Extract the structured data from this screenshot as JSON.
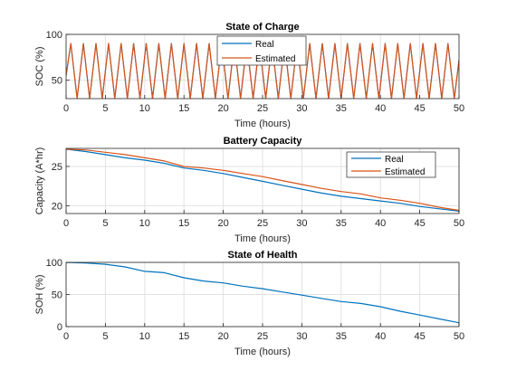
{
  "chart_data": [
    {
      "type": "line",
      "title": "State of Charge",
      "xlabel": "Time (hours)",
      "ylabel": "SOC (%)",
      "xlim": [
        0,
        50
      ],
      "ylim": [
        30,
        100
      ],
      "xticks": [
        0,
        5,
        10,
        15,
        20,
        25,
        30,
        35,
        40,
        45,
        50
      ],
      "yticks": [
        50,
        100
      ],
      "grid": true,
      "legend_position": "top-center",
      "series": [
        {
          "name": "Real",
          "color": "#0072BD",
          "x": [
            0,
            0.6,
            1.4,
            2.2,
            3.0,
            3.8,
            4.6,
            5.4,
            6.2,
            7.0,
            7.8,
            8.6,
            9.4,
            10.2,
            11.0,
            11.8,
            12.6,
            13.4,
            14.2,
            15.0,
            15.8,
            16.6,
            17.4,
            18.2,
            19.0,
            19.8,
            20.6,
            21.4,
            22.2,
            23.0,
            23.8,
            24.6,
            25.4,
            26.2,
            27.0,
            27.8,
            28.6,
            29.4,
            30.2,
            31.0,
            31.8,
            32.6,
            33.4,
            34.2,
            35.0,
            35.8,
            36.6,
            37.4,
            38.2,
            39.0,
            39.8,
            40.6,
            41.4,
            42.2,
            43.0,
            43.8,
            44.6,
            45.4,
            46.2,
            47.0,
            47.8,
            48.6,
            49.4,
            50.0
          ],
          "y": [
            55,
            90,
            30,
            90,
            30,
            90,
            30,
            90,
            30,
            90,
            30,
            90,
            30,
            90,
            30,
            90,
            30,
            90,
            30,
            90,
            30,
            90,
            30,
            90,
            30,
            90,
            30,
            90,
            30,
            90,
            30,
            90,
            30,
            90,
            30,
            90,
            30,
            90,
            30,
            90,
            30,
            90,
            30,
            90,
            30,
            90,
            30,
            90,
            30,
            90,
            30,
            90,
            30,
            90,
            30,
            90,
            30,
            90,
            30,
            90,
            30,
            90,
            30,
            72
          ]
        },
        {
          "name": "Estimated",
          "color": "#D95319",
          "x": [
            0,
            0.6,
            1.4,
            2.2,
            3.0,
            3.8,
            4.6,
            5.4,
            6.2,
            7.0,
            7.8,
            8.6,
            9.4,
            10.2,
            11.0,
            11.8,
            12.6,
            13.4,
            14.2,
            15.0,
            15.8,
            16.6,
            17.4,
            18.2,
            19.0,
            19.8,
            20.6,
            21.4,
            22.2,
            23.0,
            23.8,
            24.6,
            25.4,
            26.2,
            27.0,
            27.8,
            28.6,
            29.4,
            30.2,
            31.0,
            31.8,
            32.6,
            33.4,
            34.2,
            35.0,
            35.8,
            36.6,
            37.4,
            38.2,
            39.0,
            39.8,
            40.6,
            41.4,
            42.2,
            43.0,
            43.8,
            44.6,
            45.4,
            46.2,
            47.0,
            47.8,
            48.6,
            49.4,
            50.0
          ],
          "y": [
            55,
            90,
            30,
            90,
            30,
            90,
            30,
            90,
            30,
            90,
            30,
            90,
            30,
            90,
            30,
            90,
            30,
            90,
            30,
            90,
            30,
            90,
            30,
            90,
            30,
            90,
            30,
            90,
            30,
            90,
            30,
            90,
            30,
            90,
            30,
            90,
            30,
            90,
            30,
            90,
            30,
            90,
            30,
            90,
            30,
            90,
            30,
            90,
            30,
            90,
            30,
            90,
            30,
            90,
            30,
            90,
            30,
            90,
            30,
            90,
            30,
            90,
            30,
            72
          ]
        }
      ]
    },
    {
      "type": "line",
      "title": "Battery Capacity",
      "xlabel": "Time (hours)",
      "ylabel": "Capacity (A*hr)",
      "xlim": [
        0,
        50
      ],
      "ylim": [
        19,
        27.3
      ],
      "xticks": [
        0,
        5,
        10,
        15,
        20,
        25,
        30,
        35,
        40,
        45,
        50
      ],
      "yticks": [
        20,
        25
      ],
      "grid": true,
      "legend_position": "top-right",
      "series": [
        {
          "name": "Real",
          "color": "#0072BD",
          "x": [
            0,
            2.5,
            5,
            7.5,
            10,
            12.5,
            15,
            17.5,
            20,
            22.5,
            25,
            27.5,
            30,
            32.5,
            35,
            37.5,
            40,
            42.5,
            45,
            47.5,
            50
          ],
          "y": [
            27.2,
            26.9,
            26.5,
            26.1,
            25.8,
            25.4,
            24.8,
            24.5,
            24.1,
            23.6,
            23.1,
            22.6,
            22.1,
            21.6,
            21.2,
            20.9,
            20.6,
            20.3,
            19.9,
            19.6,
            19.3
          ]
        },
        {
          "name": "Estimated",
          "color": "#D95319",
          "x": [
            0,
            2.5,
            5,
            7.5,
            10,
            12.5,
            15,
            17.5,
            20,
            22.5,
            25,
            27.5,
            30,
            32.5,
            35,
            37.5,
            40,
            42.5,
            45,
            47.5,
            50
          ],
          "y": [
            27.2,
            27.1,
            26.8,
            26.5,
            26.1,
            25.7,
            25.0,
            24.8,
            24.5,
            24.1,
            23.7,
            23.2,
            22.7,
            22.2,
            21.8,
            21.5,
            21.0,
            20.7,
            20.3,
            19.8,
            19.4
          ]
        }
      ]
    },
    {
      "type": "line",
      "title": "State of Health",
      "xlabel": "Time (hours)",
      "ylabel": "SOH (%)",
      "xlim": [
        0,
        50
      ],
      "ylim": [
        0,
        100
      ],
      "xticks": [
        0,
        5,
        10,
        15,
        20,
        25,
        30,
        35,
        40,
        45,
        50
      ],
      "yticks": [
        0,
        50,
        100
      ],
      "grid": true,
      "series": [
        {
          "color": "#0072BD",
          "x": [
            0,
            2.5,
            5,
            7.5,
            10,
            12.5,
            15,
            17.5,
            20,
            22.5,
            25,
            27.5,
            30,
            32.5,
            35,
            37.5,
            40,
            42.5,
            45,
            47.5,
            50
          ],
          "y": [
            100,
            99,
            97,
            93,
            86,
            84,
            76,
            71,
            68,
            63,
            59,
            54,
            49,
            44,
            39,
            36,
            31,
            24,
            18,
            12,
            6
          ]
        }
      ]
    }
  ]
}
